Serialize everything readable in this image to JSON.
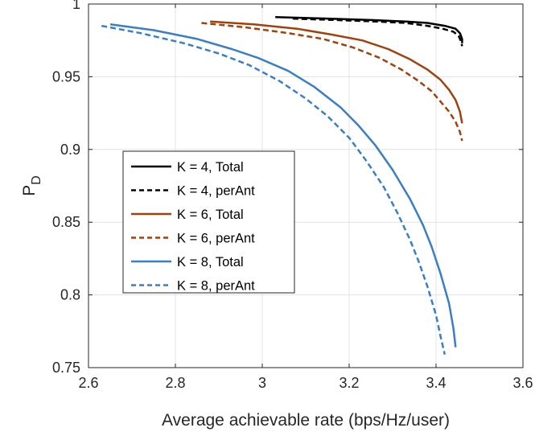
{
  "chart_data": {
    "type": "line",
    "title": "",
    "xlabel": "Average achievable rate (bps/Hz/user)",
    "ylabel": {
      "main": "P",
      "sub": "D"
    },
    "xlim": [
      2.6,
      3.6
    ],
    "ylim": [
      0.75,
      1.0
    ],
    "xticks": [
      2.6,
      2.8,
      3.0,
      3.2,
      3.4,
      3.6
    ],
    "xtick_labels": [
      "2.6",
      "2.8",
      "3",
      "3.2",
      "3.4",
      "3.6"
    ],
    "yticks": [
      0.75,
      0.8,
      0.85,
      0.9,
      0.95,
      1.0
    ],
    "ytick_labels": [
      "0.75",
      "0.8",
      "0.85",
      "0.9",
      "0.95",
      "1"
    ],
    "grid": true,
    "legend_position": "center-left",
    "series": [
      {
        "name": "K = 4, Total",
        "color": "#000000",
        "dash": "solid",
        "x": [
          3.03,
          3.15,
          3.25,
          3.33,
          3.38,
          3.42,
          3.445,
          3.455,
          3.46,
          3.46
        ],
        "y": [
          0.991,
          0.99,
          0.989,
          0.988,
          0.987,
          0.985,
          0.983,
          0.98,
          0.976,
          0.973
        ]
      },
      {
        "name": "K = 4, perAnt",
        "color": "#000000",
        "dash": "dashed",
        "x": [
          3.07,
          3.17,
          3.26,
          3.33,
          3.38,
          3.415,
          3.44,
          3.452,
          3.458,
          3.46
        ],
        "y": [
          0.99,
          0.989,
          0.988,
          0.987,
          0.985,
          0.983,
          0.981,
          0.978,
          0.974,
          0.971
        ]
      },
      {
        "name": "K = 6, Total",
        "color": "#A2410C",
        "dash": "solid",
        "x": [
          2.88,
          2.98,
          3.08,
          3.16,
          3.23,
          3.29,
          3.34,
          3.38,
          3.41,
          3.43,
          3.445,
          3.455,
          3.46
        ],
        "y": [
          0.988,
          0.986,
          0.983,
          0.979,
          0.975,
          0.969,
          0.962,
          0.955,
          0.948,
          0.941,
          0.934,
          0.926,
          0.918
        ]
      },
      {
        "name": "K = 6, perAnt",
        "color": "#A2410C",
        "dash": "dashed",
        "x": [
          2.86,
          2.96,
          3.06,
          3.14,
          3.21,
          3.27,
          3.32,
          3.36,
          3.39,
          3.41,
          3.43,
          3.445,
          3.455,
          3.46
        ],
        "y": [
          0.987,
          0.984,
          0.98,
          0.976,
          0.97,
          0.963,
          0.955,
          0.947,
          0.94,
          0.933,
          0.926,
          0.919,
          0.912,
          0.906
        ]
      },
      {
        "name": "K = 8, Total",
        "color": "#3A7EC6",
        "dash": "solid",
        "x": [
          2.65,
          2.75,
          2.85,
          2.93,
          2.99,
          3.06,
          3.12,
          3.18,
          3.22,
          3.26,
          3.3,
          3.34,
          3.37,
          3.39,
          3.41,
          3.43,
          3.44,
          3.445
        ],
        "y": [
          0.986,
          0.982,
          0.976,
          0.969,
          0.963,
          0.954,
          0.943,
          0.929,
          0.917,
          0.903,
          0.886,
          0.866,
          0.848,
          0.833,
          0.815,
          0.794,
          0.777,
          0.764
        ]
      },
      {
        "name": "K = 8, perAnt",
        "color": "#3A7EC6",
        "dash": "dashed",
        "x": [
          2.63,
          2.72,
          2.82,
          2.9,
          2.97,
          3.04,
          3.1,
          3.15,
          3.2,
          3.24,
          3.28,
          3.31,
          3.34,
          3.36,
          3.38,
          3.4,
          3.41,
          3.42
        ],
        "y": [
          0.985,
          0.98,
          0.973,
          0.966,
          0.958,
          0.947,
          0.935,
          0.923,
          0.908,
          0.892,
          0.874,
          0.857,
          0.838,
          0.823,
          0.806,
          0.786,
          0.772,
          0.759
        ]
      }
    ]
  }
}
